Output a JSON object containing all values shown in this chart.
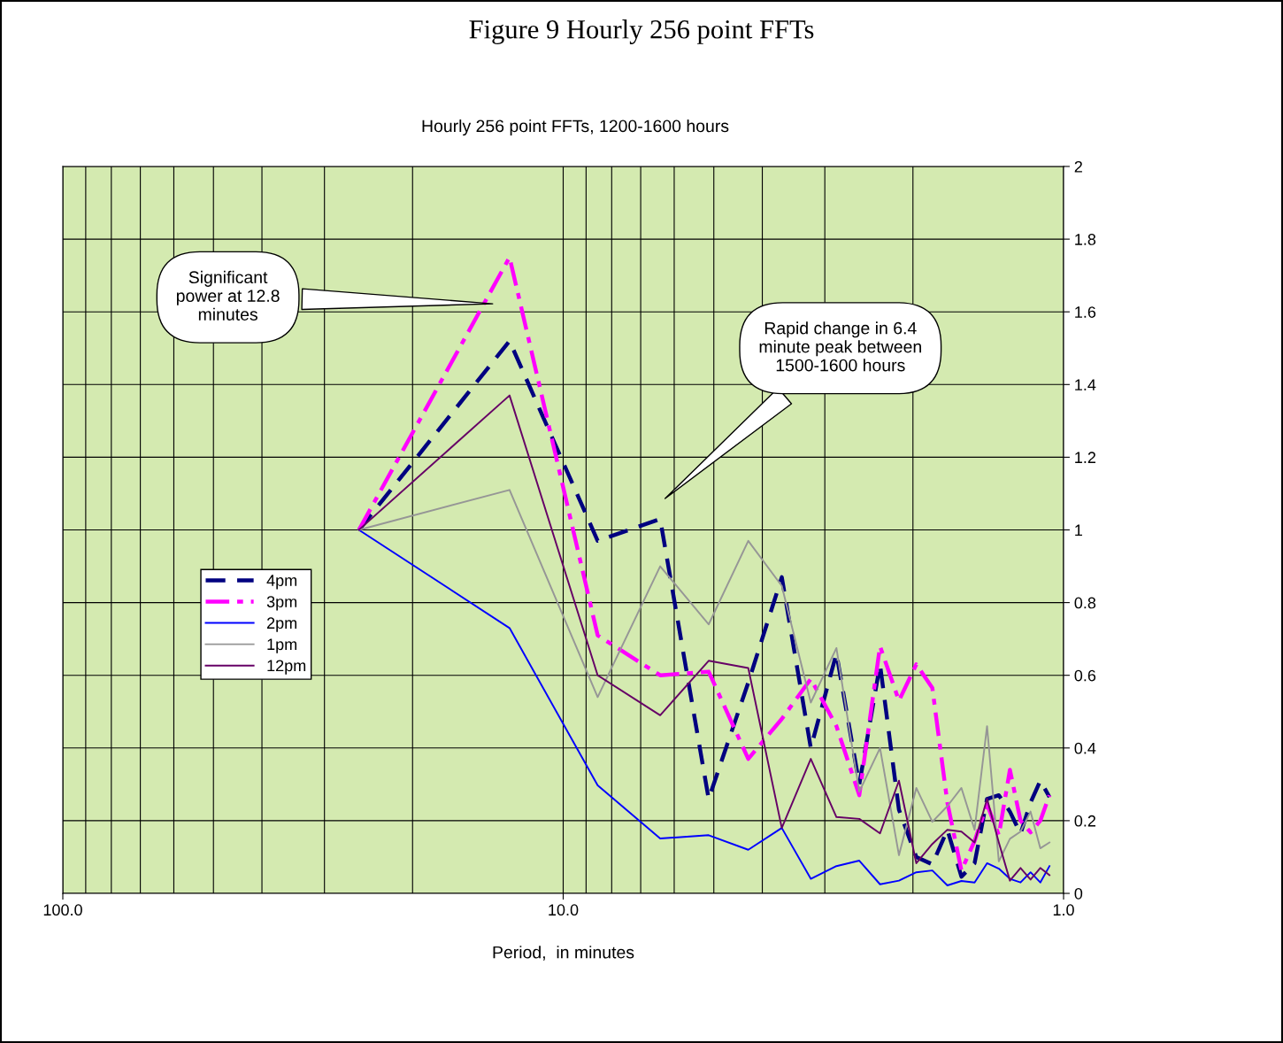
{
  "chart_data": {
    "type": "line",
    "title": "Figure 9 Hourly 256 point FFTs",
    "subtitle": "Hourly 256 point FFTs, 1200-1600 hours",
    "xlabel": "Period,  in minutes",
    "x": [
      25.6,
      12.8,
      8.533,
      6.4,
      5.12,
      4.267,
      3.657,
      3.2,
      2.844,
      2.56,
      2.327,
      2.133,
      1.969,
      1.829,
      1.707,
      1.6,
      1.506,
      1.422,
      1.347,
      1.28,
      1.219,
      1.164,
      1.113,
      1.067
    ],
    "series": [
      {
        "name": "4pm",
        "color": "#000080",
        "line_style": "dashed",
        "values": [
          1.0,
          1.52,
          0.97,
          1.03,
          0.26,
          0.58,
          0.87,
          0.4,
          0.66,
          0.3,
          0.63,
          0.23,
          0.1,
          0.08,
          0.175,
          0.046,
          0.083,
          0.26,
          0.27,
          0.225,
          0.164,
          0.25,
          0.31,
          0.265
        ]
      },
      {
        "name": "3pm",
        "color": "#ff00ff",
        "line_style": "dashdot",
        "values": [
          1.0,
          1.75,
          0.71,
          0.6,
          0.61,
          0.37,
          0.48,
          0.59,
          0.46,
          0.27,
          0.68,
          0.53,
          0.63,
          0.565,
          0.25,
          0.063,
          0.144,
          0.245,
          0.16,
          0.34,
          0.2,
          0.168,
          0.2,
          0.27
        ]
      },
      {
        "name": "2pm",
        "color": "#0000ff",
        "line_style": "solid",
        "values": [
          1.0,
          0.73,
          0.297,
          0.151,
          0.16,
          0.12,
          0.18,
          0.04,
          0.075,
          0.09,
          0.025,
          0.035,
          0.058,
          0.063,
          0.022,
          0.034,
          0.03,
          0.083,
          0.068,
          0.04,
          0.03,
          0.058,
          0.03,
          0.075
        ]
      },
      {
        "name": "1pm",
        "color": "#969696",
        "line_style": "solid",
        "values": [
          1.0,
          1.11,
          0.54,
          0.9,
          0.74,
          0.97,
          0.846,
          0.525,
          0.675,
          0.28,
          0.4,
          0.105,
          0.29,
          0.197,
          0.24,
          0.29,
          0.175,
          0.46,
          0.088,
          0.15,
          0.17,
          0.225,
          0.124,
          0.14
        ]
      },
      {
        "name": "12pm",
        "color": "#660066",
        "line_style": "solid",
        "values": [
          1.0,
          1.37,
          0.6,
          0.49,
          0.64,
          0.62,
          0.18,
          0.37,
          0.21,
          0.205,
          0.165,
          0.31,
          0.083,
          0.136,
          0.175,
          0.17,
          0.14,
          0.26,
          0.14,
          0.035,
          0.07,
          0.038,
          0.07,
          0.05
        ]
      }
    ],
    "log": "x",
    "xlim": [
      100,
      1
    ],
    "xticks": [
      {
        "value": 100,
        "label": "100.0"
      },
      {
        "value": 10,
        "label": "10.0"
      },
      {
        "value": 1,
        "label": "1.0"
      }
    ],
    "ylim": [
      0,
      2
    ],
    "yticks": [
      0,
      0.2,
      0.4,
      0.6,
      0.8,
      1,
      1.2,
      1.4,
      1.6,
      1.8,
      2
    ],
    "grid": true,
    "legend": "left",
    "marker": "none",
    "annotations": [
      "Significant\npower at 12.8\nminutes",
      "Rapid change in 6.4\nminute peak between\n1500-1600 hours"
    ]
  }
}
